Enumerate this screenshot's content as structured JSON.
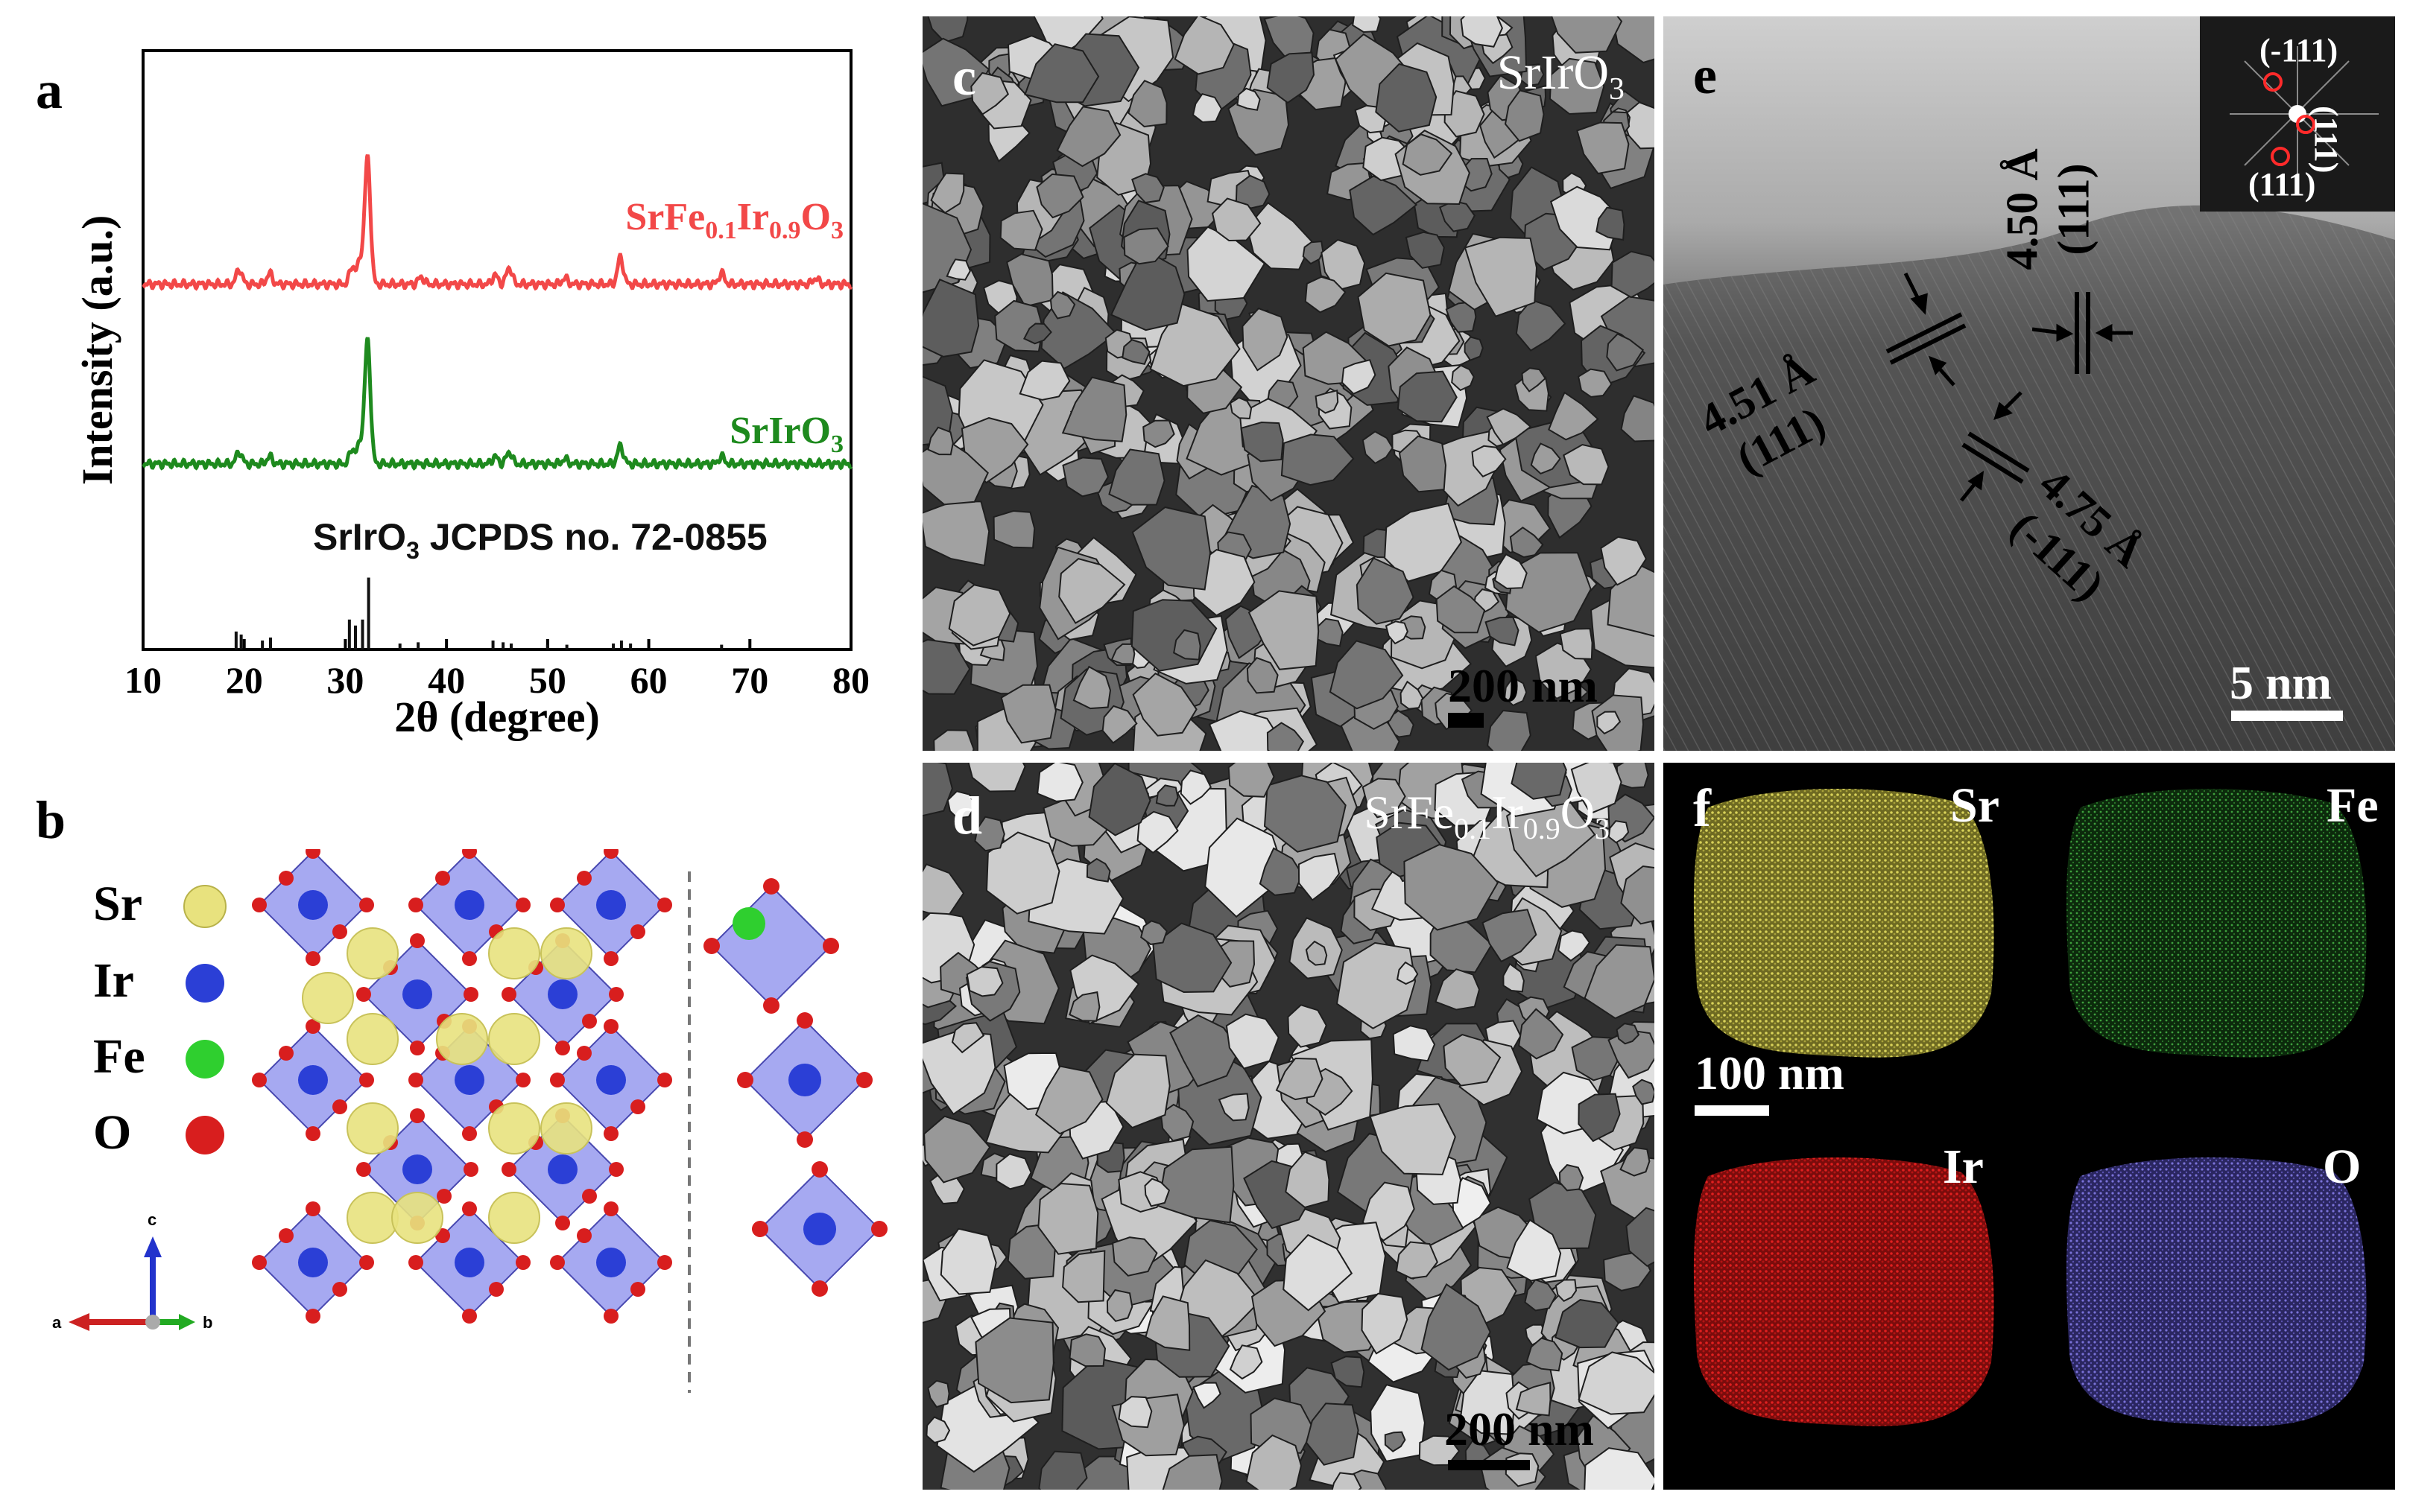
{
  "panel_labels": {
    "a": "a",
    "b": "b",
    "c": "c",
    "d": "d",
    "e": "e",
    "f": "f"
  },
  "chart_data": {
    "type": "line",
    "xlabel": "2θ (degree)",
    "ylabel": "Intensity (a.u.)",
    "xlim": [
      10,
      80
    ],
    "xticks": [
      10,
      20,
      30,
      40,
      50,
      60,
      70,
      80
    ],
    "grid": false,
    "series": [
      {
        "name": "SrFe0.1Ir0.9O3",
        "name_parts": {
          "a": "SrFe",
          "b": "0.1",
          "c": "Ir",
          "d": "0.9",
          "e": "O",
          "f": "3"
        },
        "color": "#f24848",
        "baseline": 0.61,
        "peaks": [
          [
            19.5,
            0.025
          ],
          [
            22.5,
            0.018
          ],
          [
            30.7,
            0.03
          ],
          [
            31.5,
            0.04
          ],
          [
            32.2,
            0.21
          ],
          [
            37.5,
            0.012
          ],
          [
            44.8,
            0.015
          ],
          [
            46.2,
            0.028
          ],
          [
            51.7,
            0.01
          ],
          [
            57.2,
            0.045
          ],
          [
            67.2,
            0.018
          ],
          [
            76.5,
            0.01
          ]
        ]
      },
      {
        "name": "SrIrO3",
        "name_parts": {
          "a": "SrIrO",
          "f": "3"
        },
        "color": "#1e8a1e",
        "baseline": 0.31,
        "peaks": [
          [
            19.5,
            0.02
          ],
          [
            22.5,
            0.012
          ],
          [
            30.7,
            0.025
          ],
          [
            31.5,
            0.035
          ],
          [
            32.2,
            0.205
          ],
          [
            44.8,
            0.012
          ],
          [
            46.2,
            0.02
          ],
          [
            51.7,
            0.008
          ],
          [
            57.2,
            0.03
          ],
          [
            67.2,
            0.012
          ]
        ]
      },
      {
        "name": "SrIrO3 JCPDS no. 72-0855",
        "name_parts": {
          "a": "SrIrO",
          "f": "3",
          "g": " JCPDS no. 72-0855"
        },
        "color": "#111111",
        "type": "stick",
        "sticks": [
          [
            19.2,
            0.03
          ],
          [
            19.7,
            0.025
          ],
          [
            21.8,
            0.015
          ],
          [
            22.6,
            0.02
          ],
          [
            30.4,
            0.05
          ],
          [
            31.0,
            0.04
          ],
          [
            31.7,
            0.05
          ],
          [
            32.3,
            0.12
          ],
          [
            35.4,
            0.01
          ],
          [
            37.2,
            0.012
          ],
          [
            44.6,
            0.015
          ],
          [
            45.6,
            0.012
          ],
          [
            46.4,
            0.01
          ],
          [
            50.0,
            0.008
          ],
          [
            51.9,
            0.008
          ],
          [
            56.5,
            0.01
          ],
          [
            57.3,
            0.015
          ],
          [
            58.2,
            0.01
          ],
          [
            67.2,
            0.008
          ]
        ]
      }
    ]
  },
  "panel_b": {
    "legend": [
      {
        "symbol": "Sr",
        "color": "#e8e27e"
      },
      {
        "symbol": "Ir",
        "color": "#2b3fd6"
      },
      {
        "symbol": "Fe",
        "color": "#2fcf2f"
      },
      {
        "symbol": "O",
        "color": "#d81e1e"
      }
    ],
    "axes": {
      "a": "a",
      "b": "b",
      "c": "c"
    }
  },
  "panel_c": {
    "label_parts": {
      "main": "SrIrO",
      "sub": "3"
    },
    "scalebar": "200 nm"
  },
  "panel_d": {
    "label_parts": {
      "a": "SrFe",
      "b": "0.1",
      "c": "Ir",
      "d": "0.9",
      "e": "O",
      "f": "3"
    },
    "scalebar": "200 nm"
  },
  "panel_e": {
    "scalebar": "5 nm",
    "annotations": [
      {
        "d": "4.51 Å",
        "hkl": "(111)"
      },
      {
        "d": "4.50 Å",
        "hkl": "(111)"
      },
      {
        "d": "4.75 Å",
        "hkl": "(-111)"
      }
    ],
    "fft_labels": [
      "(-111)",
      "(111)",
      "(111)"
    ]
  },
  "panel_f": {
    "scalebar": "100 nm",
    "maps": [
      {
        "element": "Sr",
        "color": "#c8c24a"
      },
      {
        "element": "Fe",
        "color": "#3a8a3a"
      },
      {
        "element": "Ir",
        "color": "#c81818"
      },
      {
        "element": "O",
        "color": "#6b63c8"
      }
    ]
  }
}
